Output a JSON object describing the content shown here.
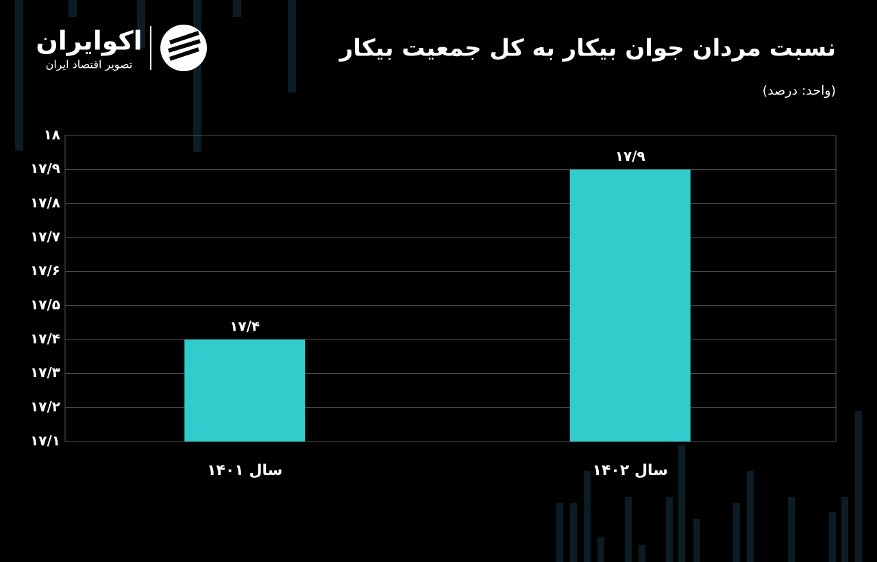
{
  "brand": {
    "name": "اکوایران",
    "tagline": "تصویر اقتصاد ایران"
  },
  "chart_data": {
    "type": "bar",
    "title": "نسبت مردان جوان بیکار به کل جمعیت بیکار",
    "subtitle": "(واحد: درصد)",
    "categories": [
      "سال ۱۴۰۱",
      "سال ۱۴۰۲"
    ],
    "values": [
      17.4,
      17.9
    ],
    "value_labels": [
      "۱۷/۴",
      "۱۷/۹"
    ],
    "color": "#33cccc",
    "ylim": [
      17.1,
      18
    ],
    "yticks": [
      {
        "value": 17.1,
        "label": "۱۷/۱"
      },
      {
        "value": 17.2,
        "label": "۱۷/۲"
      },
      {
        "value": 17.3,
        "label": "۱۷/۳"
      },
      {
        "value": 17.4,
        "label": "۱۷/۴"
      },
      {
        "value": 17.5,
        "label": "۱۷/۵"
      },
      {
        "value": 17.6,
        "label": "۱۷/۶"
      },
      {
        "value": 17.7,
        "label": "۱۷/۷"
      },
      {
        "value": 17.8,
        "label": "۱۷/۸"
      },
      {
        "value": 17.9,
        "label": "۱۷/۹"
      },
      {
        "value": 18,
        "label": "۱۸"
      }
    ],
    "grid": true
  }
}
